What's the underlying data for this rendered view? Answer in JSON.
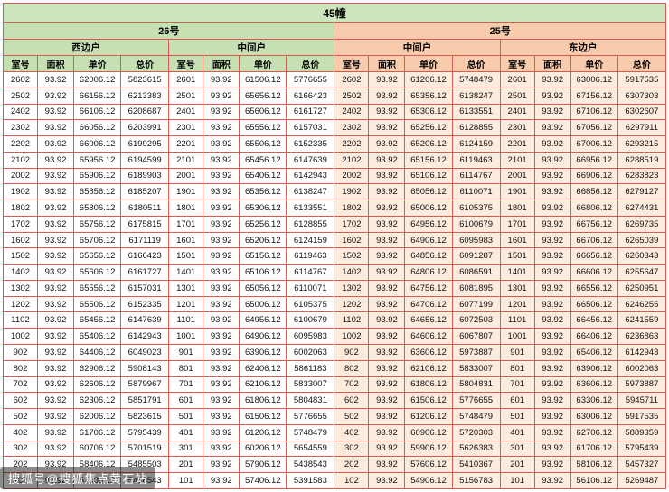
{
  "title": "45幢",
  "watermark": "搜狐号@搜狐焦点黄石站",
  "colors": {
    "green_header": "#c6e0b4",
    "orange_header": "#f8cbad",
    "orange_tint": "#fdebdd",
    "title_bg": "#cde5bd",
    "grid": "#d85b4f"
  },
  "buildings": [
    {
      "name": "26号",
      "units": [
        "西边户",
        "中间户"
      ]
    },
    {
      "name": "25号",
      "units": [
        "中间户",
        "东边户"
      ]
    }
  ],
  "column_headers": [
    "室号",
    "面积",
    "单价",
    "总价"
  ],
  "rows": [
    [
      "2602",
      "93.92",
      "62006.12",
      "5823615",
      "2601",
      "93.92",
      "61506.12",
      "5776655",
      "2602",
      "93.92",
      "61206.12",
      "5748479",
      "2601",
      "93.92",
      "63006.12",
      "5917535"
    ],
    [
      "2502",
      "93.92",
      "66156.12",
      "6213383",
      "2501",
      "93.92",
      "65656.12",
      "6166423",
      "2502",
      "93.92",
      "65356.12",
      "6138247",
      "2501",
      "93.92",
      "67156.12",
      "6307303"
    ],
    [
      "2402",
      "93.92",
      "66106.12",
      "6208687",
      "2401",
      "93.92",
      "65606.12",
      "6161727",
      "2402",
      "93.92",
      "65306.12",
      "6133551",
      "2401",
      "93.92",
      "67106.12",
      "6302607"
    ],
    [
      "2302",
      "93.92",
      "66056.12",
      "6203991",
      "2301",
      "93.92",
      "65556.12",
      "6157031",
      "2302",
      "93.92",
      "65256.12",
      "6128855",
      "2301",
      "93.92",
      "67056.12",
      "6297911"
    ],
    [
      "2202",
      "93.92",
      "66006.12",
      "6199295",
      "2201",
      "93.92",
      "65506.12",
      "6152335",
      "2202",
      "93.92",
      "65206.12",
      "6124159",
      "2201",
      "93.92",
      "67006.12",
      "6293215"
    ],
    [
      "2102",
      "93.92",
      "65956.12",
      "6194599",
      "2101",
      "93.92",
      "65456.12",
      "6147639",
      "2102",
      "93.92",
      "65156.12",
      "6119463",
      "2101",
      "93.92",
      "66956.12",
      "6288519"
    ],
    [
      "2002",
      "93.92",
      "65906.12",
      "6189903",
      "2001",
      "93.92",
      "65406.12",
      "6142943",
      "2002",
      "93.92",
      "65106.12",
      "6114767",
      "2001",
      "93.92",
      "66906.12",
      "6283823"
    ],
    [
      "1902",
      "93.92",
      "65856.12",
      "6185207",
      "1901",
      "93.92",
      "65356.12",
      "6138247",
      "1902",
      "93.92",
      "65056.12",
      "6110071",
      "1901",
      "93.92",
      "66856.12",
      "6279127"
    ],
    [
      "1802",
      "93.92",
      "65806.12",
      "6180511",
      "1801",
      "93.92",
      "65306.12",
      "6133551",
      "1802",
      "93.92",
      "65006.12",
      "6105375",
      "1801",
      "93.92",
      "66806.12",
      "6274431"
    ],
    [
      "1702",
      "93.92",
      "65756.12",
      "6175815",
      "1701",
      "93.92",
      "65256.12",
      "6128855",
      "1702",
      "93.92",
      "64956.12",
      "6100679",
      "1701",
      "93.92",
      "66756.12",
      "6269735"
    ],
    [
      "1602",
      "93.92",
      "65706.12",
      "6171119",
      "1601",
      "93.92",
      "65206.12",
      "6124159",
      "1602",
      "93.92",
      "64906.12",
      "6095983",
      "1601",
      "93.92",
      "66706.12",
      "6265039"
    ],
    [
      "1502",
      "93.92",
      "65656.12",
      "6166423",
      "1501",
      "93.92",
      "65156.12",
      "6119463",
      "1502",
      "93.92",
      "64856.12",
      "6091287",
      "1501",
      "93.92",
      "66656.12",
      "6260343"
    ],
    [
      "1402",
      "93.92",
      "65606.12",
      "6161727",
      "1401",
      "93.92",
      "65106.12",
      "6114767",
      "1402",
      "93.92",
      "64806.12",
      "6086591",
      "1401",
      "93.92",
      "66606.12",
      "6255647"
    ],
    [
      "1302",
      "93.92",
      "65556.12",
      "6157031",
      "1301",
      "93.92",
      "65056.12",
      "6110071",
      "1302",
      "93.92",
      "64756.12",
      "6081895",
      "1301",
      "93.92",
      "66556.12",
      "6250951"
    ],
    [
      "1202",
      "93.92",
      "65506.12",
      "6152335",
      "1201",
      "93.92",
      "65006.12",
      "6105375",
      "1202",
      "93.92",
      "64706.12",
      "6077199",
      "1201",
      "93.92",
      "66506.12",
      "6246255"
    ],
    [
      "1102",
      "93.92",
      "65456.12",
      "6147639",
      "1101",
      "93.92",
      "64956.12",
      "6100679",
      "1102",
      "93.92",
      "64656.12",
      "6072503",
      "1101",
      "93.92",
      "66456.12",
      "6241559"
    ],
    [
      "1002",
      "93.92",
      "65406.12",
      "6142943",
      "1001",
      "93.92",
      "64906.12",
      "6095983",
      "1002",
      "93.92",
      "64606.12",
      "6067807",
      "1001",
      "93.92",
      "66406.12",
      "6236863"
    ],
    [
      "902",
      "93.92",
      "64406.12",
      "6049023",
      "901",
      "93.92",
      "63906.12",
      "6002063",
      "902",
      "93.92",
      "63606.12",
      "5973887",
      "901",
      "93.92",
      "65406.12",
      "6142943"
    ],
    [
      "802",
      "93.92",
      "62906.12",
      "5908143",
      "801",
      "93.92",
      "62406.12",
      "5861183",
      "802",
      "93.92",
      "62106.12",
      "5833007",
      "801",
      "93.92",
      "63906.12",
      "6002063"
    ],
    [
      "702",
      "93.92",
      "62606.12",
      "5879967",
      "701",
      "93.92",
      "62106.12",
      "5833007",
      "702",
      "93.92",
      "61806.12",
      "5804831",
      "701",
      "93.92",
      "63606.12",
      "5973887"
    ],
    [
      "602",
      "93.92",
      "62306.12",
      "5851791",
      "601",
      "93.92",
      "61806.12",
      "5804831",
      "602",
      "93.92",
      "61506.12",
      "5776655",
      "601",
      "93.92",
      "63306.12",
      "5945711"
    ],
    [
      "502",
      "93.92",
      "62006.12",
      "5823615",
      "501",
      "93.92",
      "61506.12",
      "5776655",
      "502",
      "93.92",
      "61206.12",
      "5748479",
      "501",
      "93.92",
      "63006.12",
      "5917535"
    ],
    [
      "402",
      "93.92",
      "61706.12",
      "5795439",
      "401",
      "93.92",
      "61206.12",
      "5748479",
      "402",
      "93.92",
      "60906.12",
      "5720303",
      "401",
      "93.92",
      "62706.12",
      "5889359"
    ],
    [
      "302",
      "93.92",
      "60706.12",
      "5701519",
      "301",
      "93.92",
      "60206.12",
      "5654559",
      "302",
      "93.92",
      "59906.12",
      "5626383",
      "301",
      "93.92",
      "61706.12",
      "5795439"
    ],
    [
      "202",
      "93.92",
      "58406.12",
      "5485503",
      "201",
      "93.92",
      "57906.12",
      "5438543",
      "202",
      "93.92",
      "57606.12",
      "5410367",
      "201",
      "93.92",
      "58106.12",
      "5457327"
    ],
    [
      "102",
      "93.92",
      "57906.12",
      "5438543",
      "101",
      "93.92",
      "57406.12",
      "5391583",
      "102",
      "93.92",
      "54906.12",
      "5156783",
      "101",
      "93.92",
      "56106.12",
      "5269487"
    ]
  ]
}
